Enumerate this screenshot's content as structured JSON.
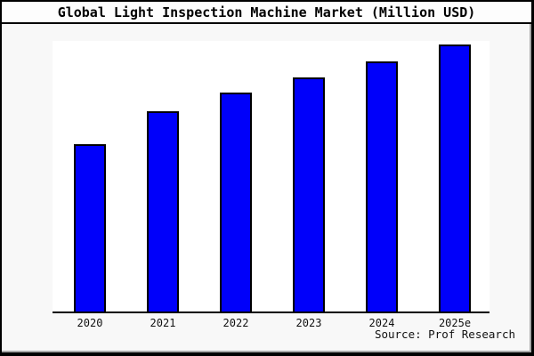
{
  "chart_data": {
    "type": "bar",
    "title": "Global Light Inspection Machine Market (Million USD)",
    "categories": [
      "2020",
      "2021",
      "2022",
      "2023",
      "2024",
      "2025e"
    ],
    "values": [
      100,
      120,
      131,
      140,
      150,
      160
    ],
    "values_note": "No y-axis tick labels are shown in the image; values are relative units estimated from bar heights with 2020 indexed to 100",
    "xlabel": "",
    "ylabel": "",
    "ylim": [
      0,
      162
    ],
    "grid": false,
    "legend": false,
    "bar_color": "#0000fa",
    "bar_border_color": "#000000",
    "source_note": "Source: Prof Research"
  },
  "colors": {
    "canvas_background": "#f8f8f8",
    "plot_background": "#ffffff",
    "title_band_background": "#fdfdfd",
    "frame_border": "#000000",
    "axis_line": "#000000",
    "text": "#000000"
  }
}
